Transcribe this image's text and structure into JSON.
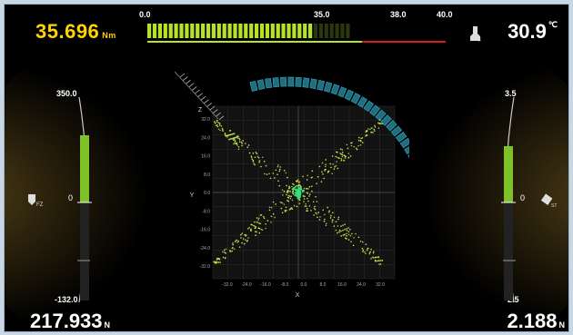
{
  "torque": {
    "value": "35.696",
    "unit": "Nm"
  },
  "temperature": {
    "value": "30.9",
    "unit": "℃"
  },
  "force_left": {
    "value": "217.933",
    "unit": "N"
  },
  "force_right": {
    "value": "2.188",
    "unit": "N"
  },
  "torque_scale": {
    "ticks": [
      "0.0",
      "35.0",
      "38.0",
      "40.0"
    ],
    "level_fraction": 0.89,
    "colors": {
      "fill": "#b6e22a",
      "dim": "#556b1a",
      "warn": "#d21f1f"
    }
  },
  "left_gauge": {
    "max": "350.0",
    "zero": "0",
    "min": "-132.0",
    "level_fraction": 0.66,
    "icon": "fz-force-icon"
  },
  "right_gauge": {
    "max": "3.5",
    "zero": "0",
    "min": "-2.5",
    "level_fraction": 0.95,
    "icon": "satellite-icon"
  },
  "plot": {
    "x_axis_label": "X",
    "y_axis_label": "Y",
    "z_axis_label": "Z",
    "x_ticks": [
      "-32.0",
      "-24.0",
      "-16.0",
      "-8.0",
      "0.0",
      "8.0",
      "16.0",
      "24.0",
      "32.0"
    ],
    "y_ticks": [
      "32.0",
      "24.0",
      "16.0",
      "8.0",
      "0.0",
      "-8.0",
      "-16.0",
      "-24.0",
      "-32.0"
    ],
    "colors": {
      "points": "#d7e24a",
      "center": "#35e07a",
      "arc": "#3aa4b8",
      "grid": "#2a2a2a"
    }
  }
}
